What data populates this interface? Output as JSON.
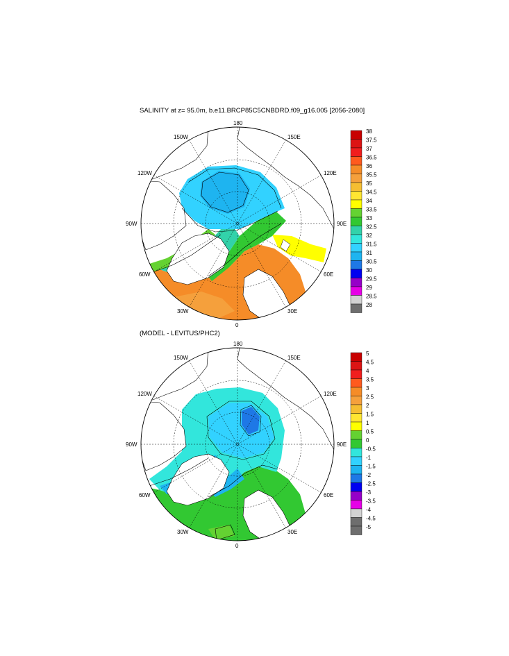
{
  "panel1": {
    "title": "SALINITY at z=  95.0m, b.e11.BRCP85C5CNBDRD.f09_g16.005 [2056-2080]",
    "lon_labels": {
      "top": "180",
      "bottom": "0",
      "left": "90W",
      "right": "90E",
      "ul1": "150W",
      "ul2": "120W",
      "ur1": "150E",
      "ur2": "120E",
      "ll1": "60W",
      "ll2": "30W",
      "lr1": "60E",
      "lr2": "30E"
    },
    "colorbar": {
      "labels": [
        "38",
        "37.5",
        "37",
        "36.5",
        "36",
        "35.5",
        "35",
        "34.5",
        "34",
        "33.5",
        "33",
        "32.5",
        "32",
        "31.5",
        "31",
        "30.5",
        "30",
        "29.5",
        "29",
        "28.5",
        "28"
      ],
      "colors": [
        "#c80000",
        "#dc1414",
        "#f01e1e",
        "#ff5a1e",
        "#f58c28",
        "#f5a03c",
        "#f5be32",
        "#ffe632",
        "#ffff00",
        "#64d232",
        "#32c832",
        "#32d2aa",
        "#32e6dc",
        "#32d2ff",
        "#1eb4f0",
        "#1e78e6",
        "#0000f0",
        "#9600c8",
        "#e600e6",
        "#d2d2d2",
        "#6e6e6e"
      ]
    }
  },
  "panel2": {
    "title": "(MODEL - LEVITUS/PHC2)",
    "lon_labels": {
      "top": "180",
      "bottom": "0",
      "left": "90W",
      "right": "90E",
      "ul1": "150W",
      "ul2": "120W",
      "ur1": "150E",
      "ur2": "120E",
      "ll1": "60W",
      "ll2": "30W",
      "lr1": "60E",
      "lr2": "30E"
    },
    "colorbar": {
      "labels": [
        "5",
        "4.5",
        "4",
        "3.5",
        "3",
        "2.5",
        "2",
        "1.5",
        "1",
        "0.5",
        "0",
        "-0.5",
        "-1",
        "-1.5",
        "-2",
        "-2.5",
        "-3",
        "-3.5",
        "-4",
        "-4.5",
        "-5"
      ],
      "colors": [
        "#c80000",
        "#dc1414",
        "#f01e1e",
        "#ff5a1e",
        "#f58c28",
        "#f5a03c",
        "#f5be32",
        "#ffe632",
        "#ffff00",
        "#64d232",
        "#32c832",
        "#32e6dc",
        "#32d2ff",
        "#1eb4f0",
        "#1e78e6",
        "#0000f0",
        "#9600c8",
        "#e600e6",
        "#d2d2d2",
        "#6e6e6e",
        "#6e6e6e"
      ]
    }
  }
}
